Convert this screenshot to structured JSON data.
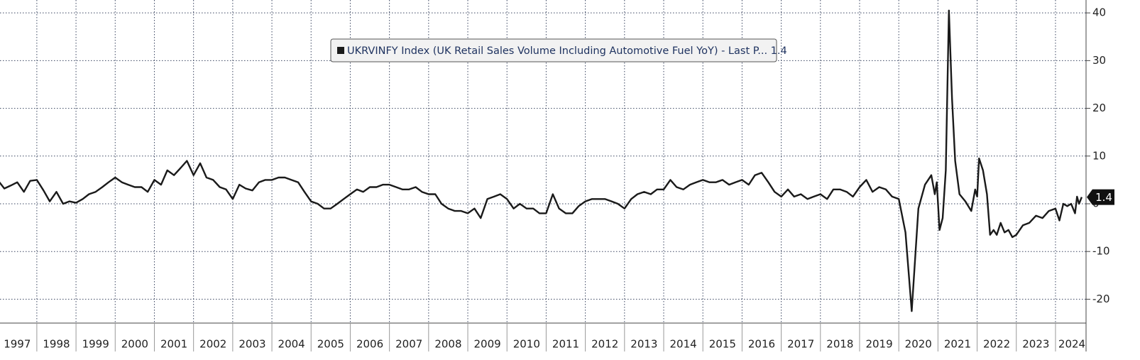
{
  "chart_data": {
    "type": "line",
    "series": [
      {
        "name": "UKRVINFY Index (UK Retail Sales Volume Including Automotive Fuel YoY) - Last P...",
        "color": "#1a1a1a",
        "x": [
          1997.0,
          1997.17,
          1997.33,
          1997.5,
          1997.67,
          1997.83,
          1998.0,
          1998.17,
          1998.33,
          1998.5,
          1998.67,
          1998.83,
          1999.0,
          1999.17,
          1999.33,
          1999.5,
          1999.67,
          1999.83,
          2000.0,
          2000.17,
          2000.33,
          2000.5,
          2000.67,
          2000.83,
          2001.0,
          2001.17,
          2001.33,
          2001.5,
          2001.67,
          2001.83,
          2002.0,
          2002.17,
          2002.33,
          2002.5,
          2002.67,
          2002.83,
          2003.0,
          2003.17,
          2003.33,
          2003.5,
          2003.67,
          2003.83,
          2004.0,
          2004.17,
          2004.33,
          2004.5,
          2004.67,
          2004.83,
          2005.0,
          2005.17,
          2005.33,
          2005.5,
          2005.67,
          2005.83,
          2006.0,
          2006.17,
          2006.33,
          2006.5,
          2006.67,
          2006.83,
          2007.0,
          2007.17,
          2007.33,
          2007.5,
          2007.67,
          2007.83,
          2008.0,
          2008.17,
          2008.33,
          2008.5,
          2008.67,
          2008.83,
          2009.0,
          2009.17,
          2009.33,
          2009.5,
          2009.67,
          2009.83,
          2010.0,
          2010.17,
          2010.33,
          2010.5,
          2010.67,
          2010.83,
          2011.0,
          2011.17,
          2011.33,
          2011.5,
          2011.67,
          2011.83,
          2012.0,
          2012.17,
          2012.33,
          2012.5,
          2012.67,
          2012.83,
          2013.0,
          2013.17,
          2013.33,
          2013.5,
          2013.67,
          2013.83,
          2014.0,
          2014.17,
          2014.33,
          2014.5,
          2014.67,
          2014.83,
          2015.0,
          2015.17,
          2015.33,
          2015.5,
          2015.67,
          2015.83,
          2016.0,
          2016.17,
          2016.33,
          2016.5,
          2016.67,
          2016.83,
          2017.0,
          2017.17,
          2017.33,
          2017.5,
          2017.67,
          2017.83,
          2018.0,
          2018.17,
          2018.33,
          2018.5,
          2018.67,
          2018.83,
          2019.0,
          2019.17,
          2019.33,
          2019.5,
          2019.67,
          2019.83,
          2020.0,
          2020.17,
          2020.33,
          2020.5,
          2020.67,
          2020.83,
          2020.92,
          2020.97,
          2021.04,
          2021.12,
          2021.2,
          2021.28,
          2021.36,
          2021.44,
          2021.55,
          2021.7,
          2021.85,
          2021.95,
          2022.0,
          2022.05,
          2022.15,
          2022.25,
          2022.33,
          2022.42,
          2022.5,
          2022.6,
          2022.7,
          2022.8,
          2022.9,
          2023.0,
          2023.17,
          2023.33,
          2023.5,
          2023.67,
          2023.83,
          2024.0,
          2024.1,
          2024.2,
          2024.3,
          2024.4,
          2024.5,
          2024.55,
          2024.6,
          2024.67
        ],
        "values": [
          5,
          3.2,
          3.8,
          4.5,
          2.5,
          4.8,
          5,
          2.8,
          0.5,
          2.5,
          0,
          0.5,
          0.2,
          1,
          2,
          2.5,
          3.5,
          4.5,
          5.5,
          4.5,
          4,
          3.5,
          3.5,
          2.5,
          5,
          4,
          7,
          6,
          7.5,
          9,
          6,
          8.5,
          5.5,
          5,
          3.5,
          3,
          1,
          4,
          3.2,
          2.8,
          4.5,
          5,
          5,
          5.5,
          5.5,
          5,
          4.5,
          2.5,
          0.5,
          0,
          -1,
          -1,
          0,
          1,
          2,
          3,
          2.5,
          3.5,
          3.5,
          4,
          4,
          3.5,
          3,
          3,
          3.5,
          2.5,
          2,
          2,
          0,
          -1,
          -1.5,
          -1.5,
          -2,
          -1,
          -3,
          1,
          1.5,
          2,
          1,
          -1,
          0,
          -1,
          -1,
          -2,
          -2,
          2,
          -1,
          -2,
          -2,
          -0.5,
          0.5,
          1,
          1,
          1,
          0.5,
          0,
          -1,
          1,
          2,
          2.5,
          2,
          3,
          3,
          5,
          3.5,
          3,
          4,
          4.5,
          5,
          4.5,
          4.5,
          5,
          4,
          4.5,
          5,
          4,
          6,
          6.5,
          4.5,
          2.5,
          1.5,
          3,
          1.5,
          2,
          1,
          1.5,
          2,
          1,
          3,
          3,
          2.5,
          1.5,
          3.5,
          5,
          2.5,
          3.5,
          3,
          1.5,
          1,
          -6,
          -22.5,
          -1,
          4,
          6,
          2,
          4.5,
          -5.5,
          -3,
          7,
          40.5,
          22,
          9,
          2,
          0.5,
          -1.5,
          3,
          1.5,
          9.5,
          7,
          2,
          -6.5,
          -5.5,
          -6.5,
          -4,
          -6,
          -5.5,
          -7,
          -6.5,
          -4.5,
          -4,
          -2.5,
          -3,
          -1.5,
          -1,
          -3.5,
          0,
          -0.5,
          0,
          -2,
          1.5,
          0,
          1.4
        ]
      }
    ],
    "xlim": [
      1997.06,
      2024.78
    ],
    "xticks": [
      1997,
      1998,
      1999,
      2000,
      2001,
      2002,
      2003,
      2004,
      2005,
      2006,
      2007,
      2008,
      2009,
      2010,
      2011,
      2012,
      2013,
      2014,
      2015,
      2016,
      2017,
      2018,
      2019,
      2020,
      2021,
      2022,
      2023,
      2024
    ],
    "ylim": [
      -25,
      42.7
    ],
    "yticks": [
      40,
      30,
      20,
      10,
      0,
      -10,
      -20
    ],
    "grid": true
  }
}
